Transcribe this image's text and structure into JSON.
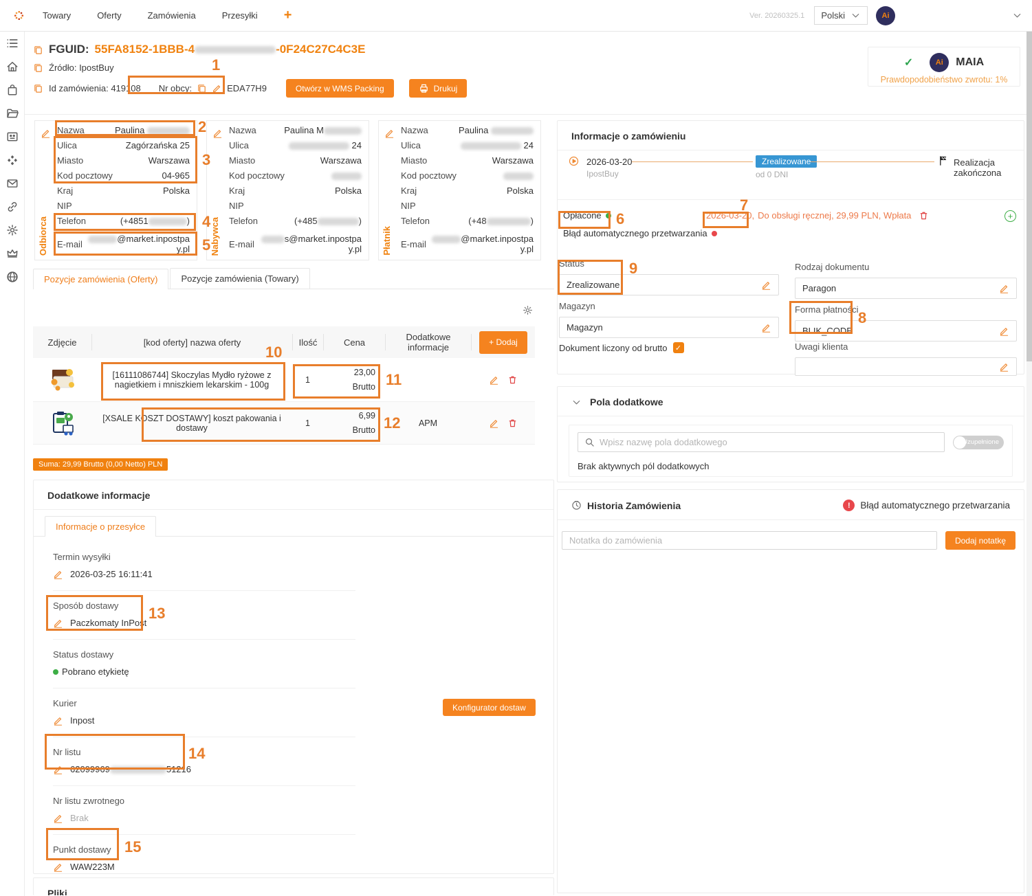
{
  "topbar": {
    "nav0": "Towary",
    "nav1": "Oferty",
    "nav2": "Zamówienia",
    "nav3": "Przesyłki",
    "plus": "+",
    "version": "Ver. 20260325.1",
    "language": "Polski",
    "avatar": "Ai"
  },
  "header": {
    "fguid_label": "FGUID:",
    "fguid_prefix": "55FA8152-1BBB-4",
    "fguid_suffix": "-0F24C27C4C3E",
    "zrodlo": "Źródło: IpostBuy",
    "id_zamowienia": "Id zamówienia: 419108",
    "nr_obcy_label": "Nr obcy:",
    "nr_obcy_value": "EDA77H9",
    "wms_button": "Otwórz w WMS Packing",
    "drukuj_button": "Drukuj",
    "maia_name": "MAIA",
    "maia_sub": "Prawdopodobieństwo zwrotu: 1%",
    "maia_avatar": "Ai",
    "maia_check": "✓"
  },
  "card_labels": {
    "nazwa": "Nazwa",
    "ulica": "Ulica",
    "miasto": "Miasto",
    "kod": "Kod pocztowy",
    "kraj": "Kraj",
    "nip": "NIP",
    "telefon": "Telefon",
    "email": "E-mail"
  },
  "cards": {
    "odbiorca": {
      "role": "Odbiorca",
      "nazwa_prefix": "Paulina ",
      "ulica": "Zagórzańska 25",
      "miasto": "Warszawa",
      "kod": "04-965",
      "kraj": "Polska",
      "telefon_prefix": "(+4851",
      "telefon_suffix": ")",
      "email_suffix": "@market.inpostpay.pl"
    },
    "nabywca": {
      "role": "Nabywca",
      "nazwa_prefix": "Paulina M",
      "ulica_suffix": " 24",
      "miasto": "Warszawa",
      "kraj": "Polska",
      "telefon_prefix": "(+485",
      "telefon_suffix": ")",
      "email_prefix": "s",
      "email_suffix": "@market.inpostpay.pl"
    },
    "platnik": {
      "role": "Płatnik",
      "nazwa_prefix": "Paulina ",
      "ulica_suffix": " 24",
      "miasto": "Warszawa",
      "kraj": "Polska",
      "telefon_prefix": "(+48",
      "telefon_suffix": ")",
      "email_suffix": "@market.inpostpay.pl"
    }
  },
  "positions": {
    "tab_oferty": "Pozycje zamówienia (Oferty)",
    "tab_towary": "Pozycje zamówienia (Towary)",
    "col_zdjecie": "Zdjęcie",
    "col_nazwa": "[kod oferty] nazwa oferty",
    "col_ilosc": "Ilość",
    "col_cena": "Cena",
    "col_dodatkowe": "Dodatkowe informacje",
    "add_button": "+ Dodaj",
    "rows": [
      {
        "name": "[16111086744] Skoczylas Mydło ryżowe z nagietkiem i mniszkiem lekarskim - 100g",
        "qty": "1",
        "price": "23,00",
        "price_type": "Brutto",
        "extra": ""
      },
      {
        "name": "[XSALE KOSZT DOSTAWY] koszt pakowania i dostawy",
        "qty": "1",
        "price": "6,99",
        "price_type": "Brutto",
        "extra": "APM"
      }
    ],
    "suma": "Suma: 29,99 Brutto (0,00 Netto) PLN"
  },
  "shipping": {
    "panel_title": "Dodatkowe informacje",
    "tab": "Informacje o przesyłce",
    "termin_label": "Termin wysyłki",
    "termin_value": "2026-03-25 16:11:41",
    "sposob_label": "Sposób dostawy",
    "sposob_value": "Paczkomaty InPost",
    "status_label": "Status dostawy",
    "status_value": "Pobrano etykietę",
    "kurier_label": "Kurier",
    "kurier_value": "Inpost",
    "konfigurator_button": "Konfigurator dostaw",
    "nrlistu_label": "Nr listu",
    "nrlistu_prefix": "62099969",
    "nrlistu_suffix": "51216",
    "nrzwrot_label": "Nr listu zwrotnego",
    "nrzwrot_value": "Brak",
    "punkt_label": "Punkt dostawy",
    "punkt_value": "WAW223M",
    "pliki_title": "Pliki"
  },
  "order_info": {
    "title": "Informacje o zamówieniu",
    "date": "2026-03-20",
    "source": "IpostBuy",
    "badge": "Zrealizowane",
    "badge_sub": "od 0 DNI",
    "finished": "Realizacja zakończona",
    "oplacone": "Opłacone",
    "payment_date": "2026-03-20,",
    "payment_rest": "Do obsługi ręcznej, 29,99 PLN, Wpłata",
    "error_line": "Błąd automatycznego przetwarzania",
    "status_label": "Status",
    "status_value": "Zrealizowane",
    "rodzaj_label": "Rodzaj dokumentu",
    "rodzaj_value": "Paragon",
    "magazyn_label": "Magazyn",
    "magazyn_value": "Magazyn",
    "forma_label": "Forma płatności",
    "forma_value": "BLIK_CODE",
    "brutto_label": "Dokument liczony od brutto",
    "uwagi_label": "Uwagi klienta",
    "plus": "+"
  },
  "extra_fields": {
    "title": "Pola dodatkowe",
    "search_placeholder": "Wpisz nazwę pola dodatkowego",
    "toggle_label": "Uzupełnione",
    "empty": "Brak aktywnych pól dodatkowych"
  },
  "history": {
    "title": "Historia Zamówienia",
    "error": "Błąd automatycznego przetwarzania",
    "error_mark": "!",
    "note_placeholder": "Notatka do zamówienia",
    "add_button": "Dodaj notatkę"
  },
  "annotations": {
    "n1": "1",
    "n2": "2",
    "n3": "3",
    "n4": "4",
    "n5": "5",
    "n6": "6",
    "n7": "7",
    "n8": "8",
    "n9": "9",
    "n10": "10",
    "n11": "11",
    "n12": "12",
    "n13": "13",
    "n14": "14",
    "n15": "15"
  },
  "colors": {
    "accent": "#f0810f",
    "annotation": "#e87e2b",
    "badge_blue": "#3796d3",
    "success_green": "#3dae46",
    "error_red": "#e8474b"
  }
}
